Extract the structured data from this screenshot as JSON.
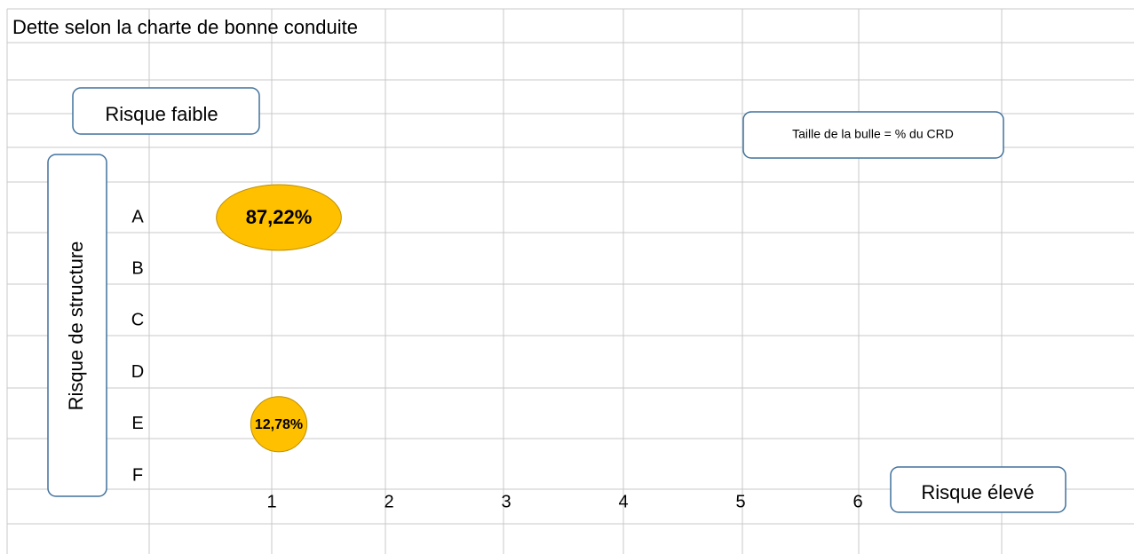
{
  "chart_data": {
    "type": "bubble",
    "title": "Dette selon la charte de bonne conduite",
    "annotations": [
      "Risque faible",
      "Taille de la bulle = % du CRD",
      "Risque élevé"
    ],
    "y_label": "Risque de structure",
    "ycategories": [
      "A",
      "B",
      "C",
      "D",
      "E",
      "F"
    ],
    "xticks": [
      1,
      2,
      3,
      4,
      5,
      6
    ],
    "xlim": [
      1,
      6
    ],
    "color": "#ffc000",
    "series": [
      {
        "x": [
          1,
          1
        ],
        "y": [
          "A",
          "E"
        ],
        "size": [
          87.22,
          12.78
        ],
        "value_labels": [
          "87,22%",
          "12,78%"
        ]
      }
    ]
  }
}
